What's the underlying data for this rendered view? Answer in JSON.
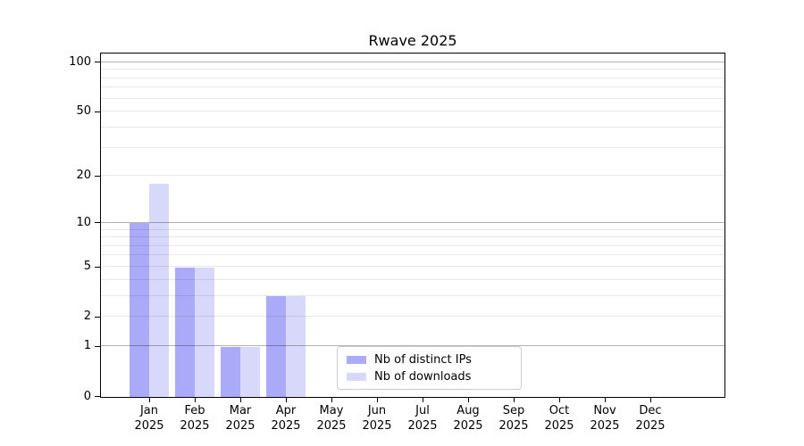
{
  "title": "Rwave 2025",
  "colors": {
    "distinct_ips_bar": "#aaaaf8",
    "downloads_bar": "#d8d8fa",
    "grid_major": "#b3b3b3",
    "grid_minor": "#ebebeb",
    "axis": "#000000",
    "legend_border": "#cccccc",
    "background": "#ffffff"
  },
  "legend": {
    "position": "lower center",
    "items": [
      {
        "label": "Nb of distinct IPs",
        "color": "#aaaaf8"
      },
      {
        "label": "Nb of downloads",
        "color": "#d8d8fa"
      }
    ]
  },
  "x_axis": {
    "months": [
      "Jan",
      "Feb",
      "Mar",
      "Apr",
      "May",
      "Jun",
      "Jul",
      "Aug",
      "Sep",
      "Oct",
      "Nov",
      "Dec"
    ],
    "year": "2025"
  },
  "y_axis": {
    "tick_labels": [
      "0",
      "1",
      "2",
      "5",
      "10",
      "20",
      "50",
      "100"
    ],
    "scale": "log1p"
  },
  "chart_data": {
    "type": "bar",
    "title": "Rwave 2025",
    "categories": [
      "Jan 2025",
      "Feb 2025",
      "Mar 2025",
      "Apr 2025",
      "May 2025",
      "Jun 2025",
      "Jul 2025",
      "Aug 2025",
      "Sep 2025",
      "Oct 2025",
      "Nov 2025",
      "Dec 2025"
    ],
    "series": [
      {
        "name": "Nb of distinct IPs",
        "color": "#aaaaf8",
        "values": [
          10,
          5,
          1,
          3,
          0,
          0,
          0,
          0,
          0,
          0,
          0,
          0
        ]
      },
      {
        "name": "Nb of downloads",
        "color": "#d8d8fa",
        "values": [
          18,
          5,
          1,
          3,
          0,
          0,
          0,
          0,
          0,
          0,
          0,
          0
        ]
      }
    ],
    "xlabel": "",
    "ylabel": "",
    "y_scale": "log1p",
    "ylim": [
      0,
      113
    ],
    "y_ticks": [
      0,
      1,
      2,
      5,
      10,
      20,
      50,
      100
    ],
    "y_gridlines": {
      "major": [
        1,
        10,
        100
      ],
      "minor": [
        2,
        3,
        4,
        5,
        6,
        7,
        8,
        9,
        20,
        30,
        40,
        50,
        60,
        70,
        80,
        90
      ]
    },
    "grid": "on",
    "legend_position": "lower center"
  }
}
